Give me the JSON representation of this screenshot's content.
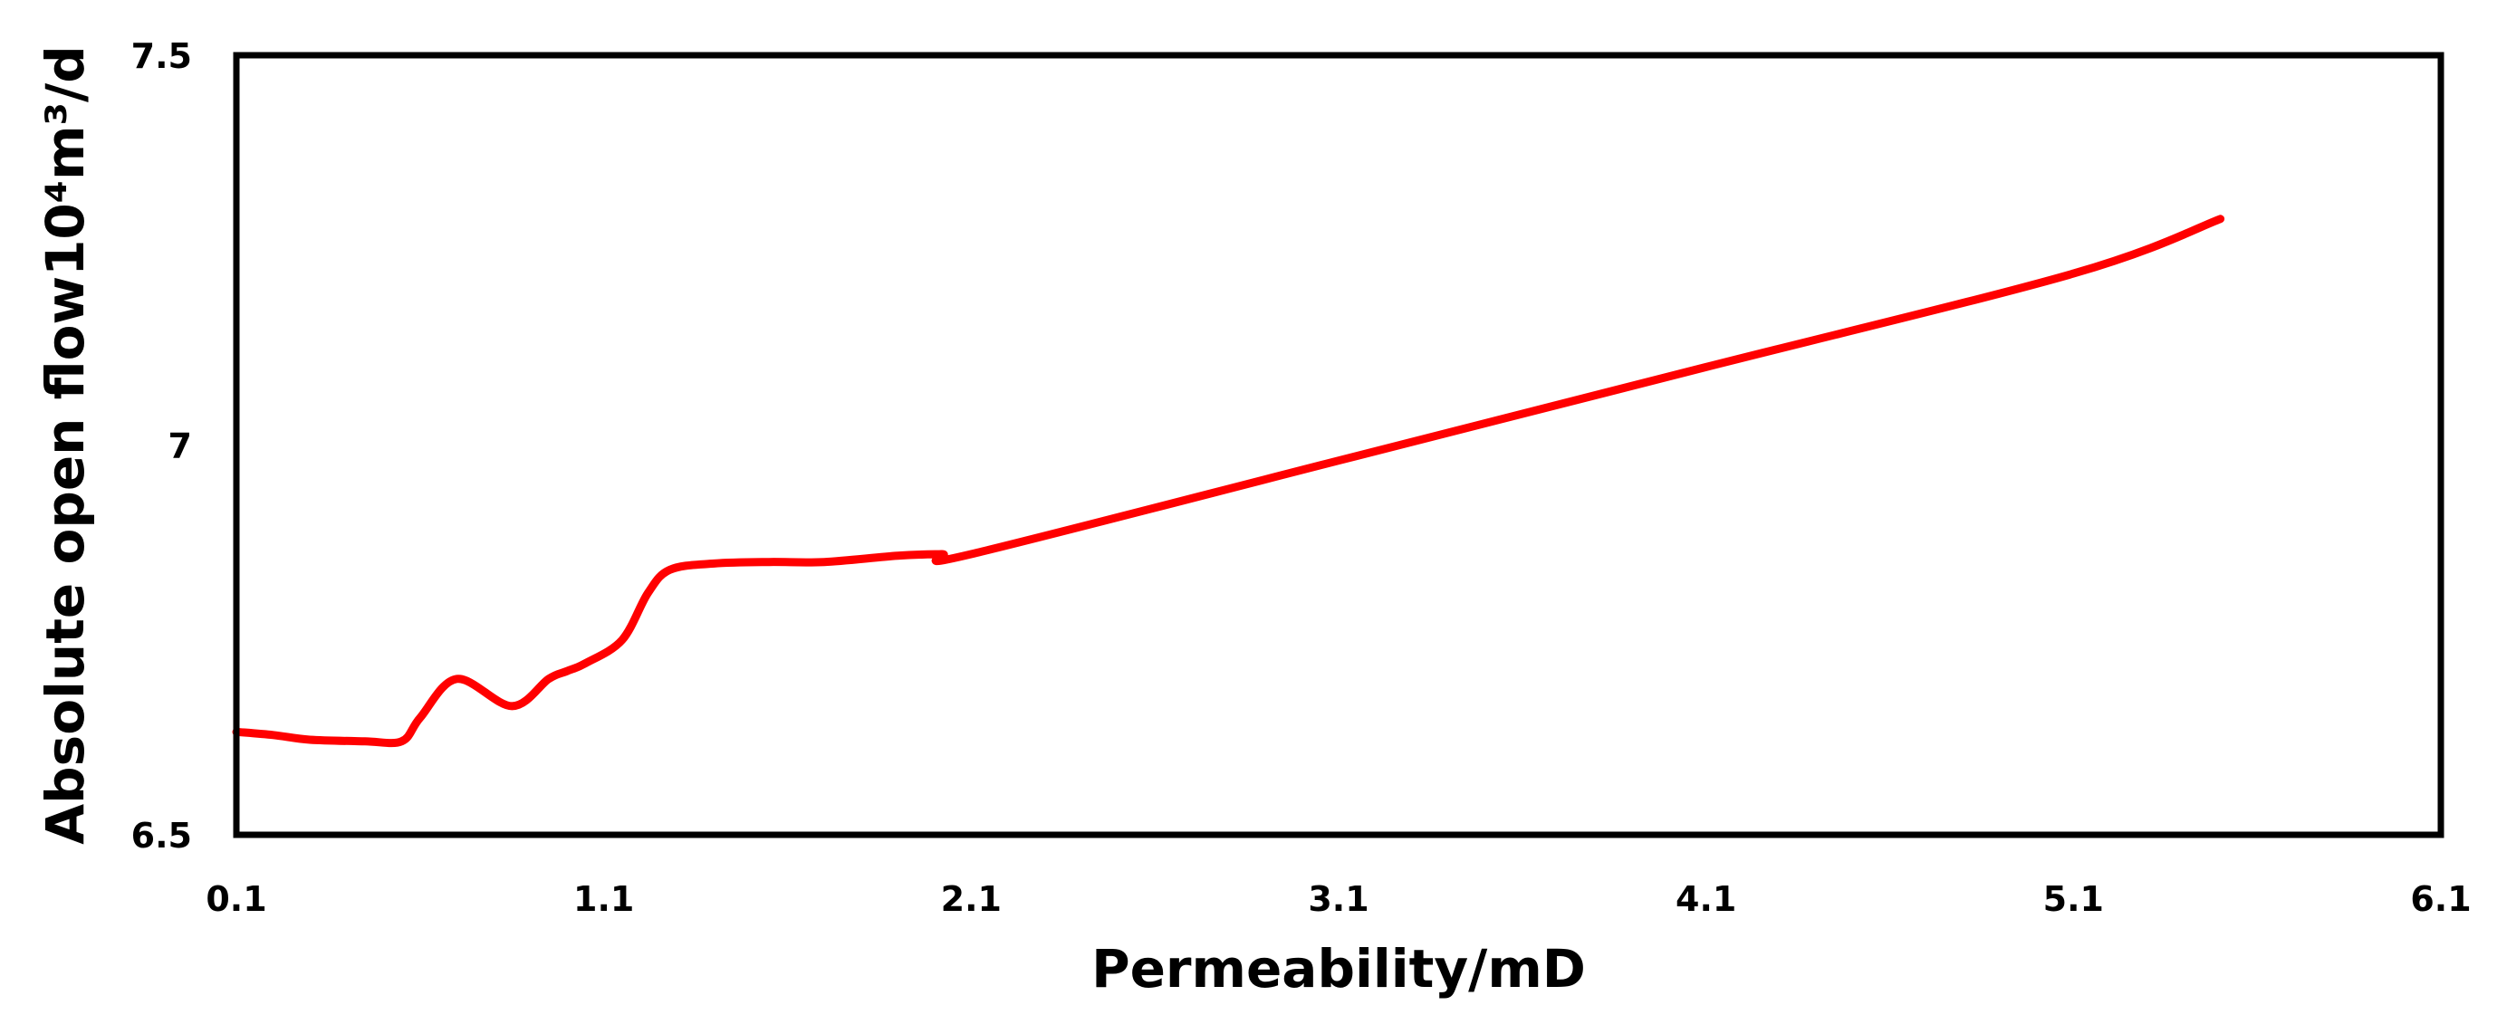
{
  "chart_data": {
    "type": "line",
    "title": "",
    "xlabel": "Permeability/mD",
    "ylabel": "Absolute open flow10⁴m³/d",
    "xlim": [
      0.1,
      6.1
    ],
    "ylim": [
      6.5,
      7.5
    ],
    "x_ticks": [
      "0.1",
      "1.1",
      "2.1",
      "3.1",
      "4.1",
      "5.1",
      "6.1"
    ],
    "y_ticks": [
      "6.5",
      "7",
      "7.5"
    ],
    "grid": false,
    "legend": "none",
    "series": [
      {
        "color": "#ff0000",
        "x": [
          0.1,
          0.2,
          0.3,
          0.45,
          0.55,
          0.6,
          0.7,
          0.85,
          0.95,
          1.0,
          1.05,
          1.15,
          1.22,
          1.28,
          1.4,
          1.55,
          1.7,
          1.9,
          2.02,
          2.1,
          3.1,
          4.1,
          5.1,
          5.5
        ],
        "y": [
          6.632,
          6.628,
          6.622,
          6.62,
          6.62,
          6.65,
          6.7,
          6.665,
          6.7,
          6.71,
          6.72,
          6.75,
          6.81,
          6.84,
          6.848,
          6.85,
          6.85,
          6.858,
          6.86,
          6.86,
          6.98,
          7.1,
          7.22,
          7.29
        ]
      }
    ]
  }
}
